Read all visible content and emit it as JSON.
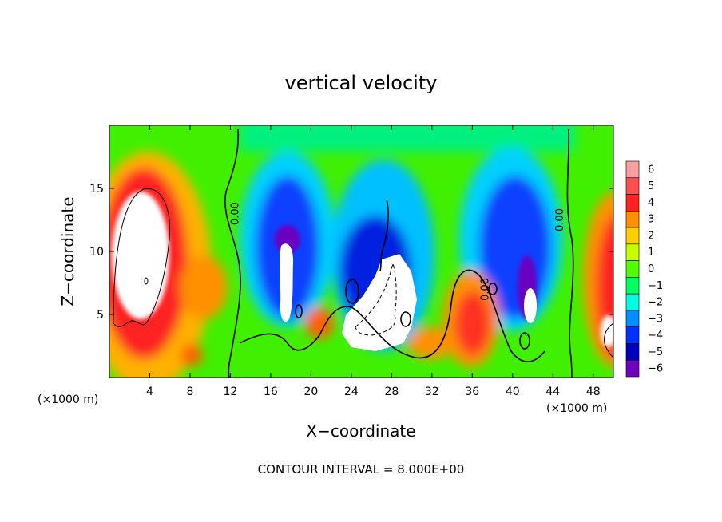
{
  "chart_data": {
    "type": "heatmap",
    "title": "vertical velocity",
    "xlabel": "X−coordinate",
    "ylabel": "Z−coordinate",
    "x_unit_left": "(×1000 m)",
    "x_unit_right": "(×1000 m)",
    "xlim": [
      0,
      50
    ],
    "ylim": [
      0,
      20
    ],
    "x_ticks": [
      4,
      8,
      12,
      16,
      20,
      24,
      28,
      32,
      36,
      40,
      44,
      48
    ],
    "x_tick_labels": [
      "4",
      "8",
      "12",
      "16",
      "20",
      "24",
      "28",
      "32",
      "36",
      "40",
      "44",
      "48"
    ],
    "y_ticks": [
      5,
      10,
      15
    ],
    "y_tick_labels": [
      "5",
      "10",
      "15"
    ],
    "colorbar": {
      "levels": [
        6,
        5,
        4,
        3,
        2,
        1,
        0,
        -1,
        -2,
        -3,
        -4,
        -5,
        -6
      ],
      "labels": [
        "6",
        "5",
        "4",
        "3",
        "2",
        "1",
        "0",
        "−1",
        "−2",
        "−3",
        "−4",
        "−5",
        "−6"
      ],
      "colors": [
        "#f7a0a0",
        "#ff5050",
        "#ff2020",
        "#ff9000",
        "#ffd000",
        "#c8ff00",
        "#50ff00",
        "#00ff60",
        "#00ffe0",
        "#0090ff",
        "#0030ff",
        "#0000c0",
        "#7000c0"
      ]
    },
    "contour_labels": [
      {
        "text": "0.00",
        "x": 12.8,
        "z": 13.0
      },
      {
        "text": "0.00",
        "x": 45.0,
        "z": 12.5
      },
      {
        "text": "0.00",
        "x": 37.6,
        "z": 7.0
      }
    ],
    "features": [
      {
        "sign": "positive",
        "x_range": [
          0.5,
          6
        ],
        "z_range": [
          1,
          15
        ],
        "peak": "> 6"
      },
      {
        "sign": "negative",
        "x_range": [
          16,
          22
        ],
        "z_range": [
          3,
          15
        ],
        "peak": "< -6"
      },
      {
        "sign": "mixed",
        "x_range": [
          23,
          30
        ],
        "z_range": [
          2,
          12
        ],
        "peak": "> 6"
      },
      {
        "sign": "positive",
        "x_range": [
          34,
          38
        ],
        "z_range": [
          1,
          8
        ],
        "peak": "4"
      },
      {
        "sign": "negative",
        "x_range": [
          37,
          43
        ],
        "z_range": [
          3,
          15
        ],
        "peak": "< -6"
      },
      {
        "sign": "positive",
        "x_range": [
          47,
          50
        ],
        "z_range": [
          1,
          13
        ],
        "peak": "> 6"
      }
    ]
  },
  "footer": {
    "contour_interval": "CONTOUR INTERVAL = 8.000E+00"
  }
}
